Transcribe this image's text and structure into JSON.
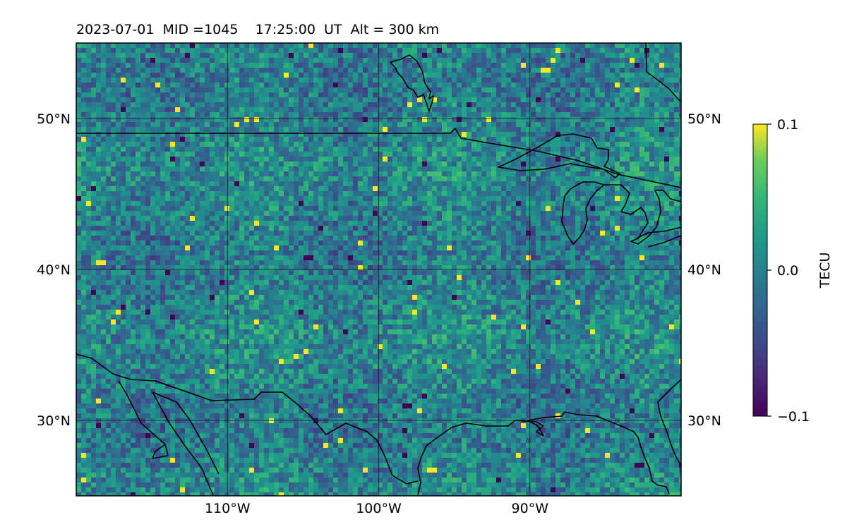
{
  "title": "2023-07-01  MID =1045    17:25:00  UT  Alt = 300 km",
  "colorbar": {
    "label": "TECU",
    "colormap": "viridis",
    "ticks": [
      {
        "value": 0.1,
        "label": "0.1"
      },
      {
        "value": 0.0,
        "label": "0.0"
      },
      {
        "value": -0.1,
        "label": "−0.1"
      }
    ],
    "vmin": -0.1,
    "vmax": 0.1
  },
  "map": {
    "lon_range": [
      -120,
      -80
    ],
    "lat_range": [
      25,
      55
    ],
    "lon_ticks": [
      {
        "value": -110,
        "label": "110°W"
      },
      {
        "value": -100,
        "label": "100°W"
      },
      {
        "value": -90,
        "label": "90°W"
      }
    ],
    "lat_ticks": [
      {
        "value": 50,
        "label": "50°N"
      },
      {
        "value": 40,
        "label": "40°N"
      },
      {
        "value": 30,
        "label": "30°N"
      }
    ],
    "grid": true,
    "field_mean": 0.0,
    "line_color": "#000000",
    "grid_color": "#1a1a1a"
  }
}
